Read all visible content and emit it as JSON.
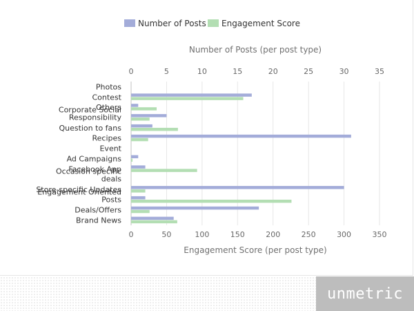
{
  "chart_data": {
    "type": "bar",
    "orientation": "horizontal",
    "categories": [
      "Photos",
      "Contest",
      "Others",
      "Corporate Social Responsibility",
      "Question to fans",
      "Recipes",
      "Event",
      "Ad Campaigns",
      "Facebook App",
      "Occasion specific deals",
      "Store-specific Updates",
      "Engagement Oriented Posts",
      "Deals/Offers",
      "Brand News"
    ],
    "series": [
      {
        "name": "Number of Posts",
        "axis": "top",
        "color": "#a3acd9",
        "values": [
          0,
          17,
          1,
          5,
          3,
          31,
          0,
          1,
          2,
          0,
          30,
          2,
          18,
          6
        ]
      },
      {
        "name": "Engagement Score",
        "axis": "bottom",
        "color": "#b3deb3",
        "values": [
          0,
          158,
          36,
          26,
          66,
          24,
          0,
          2,
          93,
          0,
          20,
          226,
          26,
          65
        ]
      }
    ],
    "top_axis": {
      "title": "Number of Posts (per post type)",
      "ticks": [
        0,
        5,
        10,
        15,
        20,
        25,
        30,
        35
      ],
      "range": [
        0,
        35
      ]
    },
    "bottom_axis": {
      "title": "Engagement Score (per post type)",
      "ticks": [
        0,
        50,
        100,
        150,
        200,
        250,
        300,
        350
      ],
      "range": [
        0,
        350
      ]
    },
    "legend_position": "top-center",
    "grid": true
  },
  "brand": {
    "logo_text": "unmetric"
  }
}
